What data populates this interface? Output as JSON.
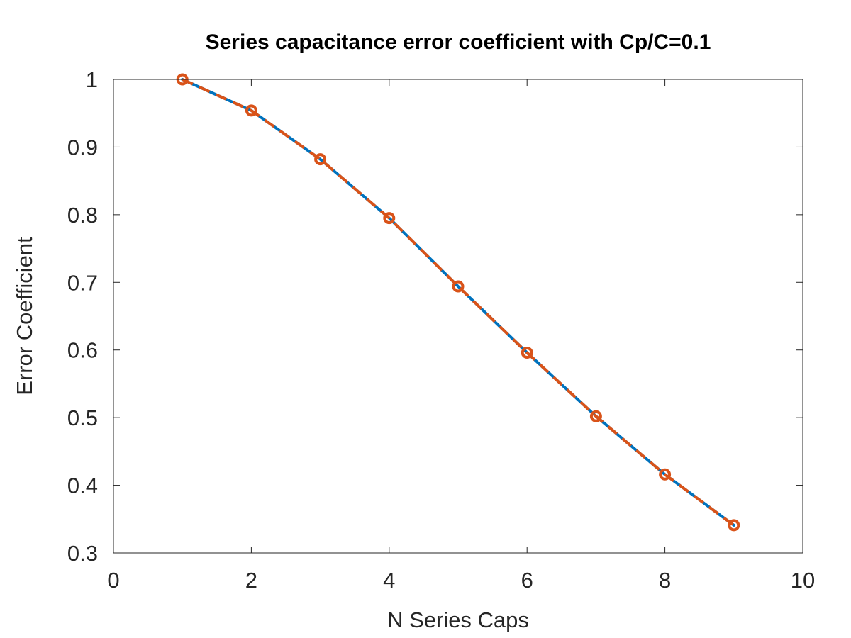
{
  "chart_data": {
    "type": "line",
    "title": "Series capacitance error coefficient with Cp/C=0.1",
    "xlabel": "N Series Caps",
    "ylabel": "Error Coefficient",
    "xlim": [
      0,
      10
    ],
    "ylim": [
      0.3,
      1
    ],
    "xticks": [
      0,
      2,
      4,
      6,
      8,
      10
    ],
    "xtick_labels": [
      "0",
      "2",
      "4",
      "6",
      "8",
      "10"
    ],
    "yticks": [
      0.3,
      0.4,
      0.5,
      0.6,
      0.7,
      0.8,
      0.9,
      1
    ],
    "ytick_labels": [
      "0.3",
      "0.4",
      "0.5",
      "0.6",
      "0.7",
      "0.8",
      "0.9",
      "1"
    ],
    "grid": false,
    "legend": "none",
    "series": [
      {
        "style": "solid-line",
        "color": "#0072BD",
        "x": [
          1,
          2,
          3,
          4,
          5,
          6,
          7,
          8,
          9
        ],
        "y": [
          1.0,
          0.954,
          0.882,
          0.795,
          0.694,
          0.596,
          0.502,
          0.416,
          0.341
        ]
      },
      {
        "style": "dashed-line-circle-markers",
        "color": "#D95319",
        "x": [
          1,
          2,
          3,
          4,
          5,
          6,
          7,
          8,
          9
        ],
        "y": [
          1.0,
          0.954,
          0.882,
          0.795,
          0.694,
          0.596,
          0.502,
          0.416,
          0.341
        ]
      }
    ]
  }
}
